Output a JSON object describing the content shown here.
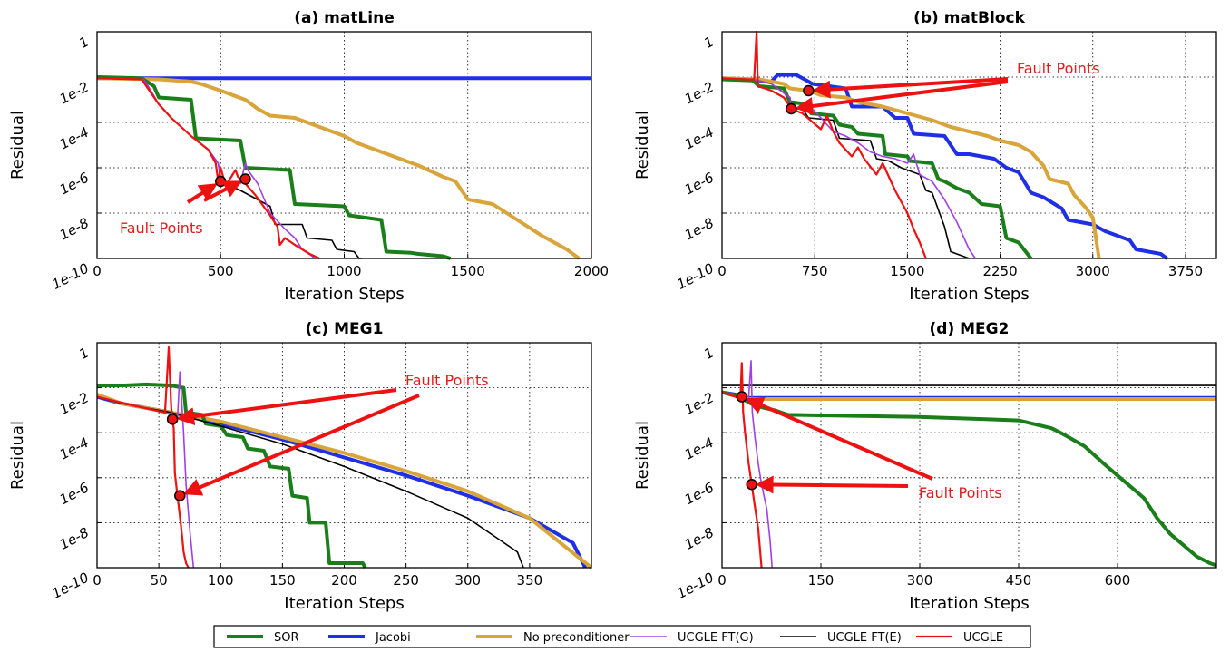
{
  "legend": [
    {
      "name": "SOR",
      "color": "#1a7f1a",
      "width": 4
    },
    {
      "name": "Jacobi",
      "color": "#1f2fe6",
      "width": 4
    },
    {
      "name": "No preconditioner",
      "color": "#d9a43a",
      "width": 4
    },
    {
      "name": "UCGLE FT(G)",
      "color": "#a23ee6",
      "width": 1.6
    },
    {
      "name": "UCGLE FT(E)",
      "color": "#000000",
      "width": 1.6
    },
    {
      "name": "UCGLE",
      "color": "#ee1111",
      "width": 2.2
    }
  ],
  "chart_data": [
    {
      "type": "line",
      "title": "(a) matLine",
      "xlabel": "Iteration Steps",
      "ylabel": "Residual",
      "xlim": [
        0,
        2000
      ],
      "xticks": [
        0,
        500,
        1000,
        1500,
        2000
      ],
      "ylim": [
        -10,
        0
      ],
      "yticks": [
        "1e-10",
        "1e-8",
        "1e-6",
        "1e-4",
        "1e-2",
        "1"
      ],
      "y_scale": "log10",
      "grid": true,
      "annotation": {
        "text": "Fault Points",
        "points": [
          [
            500,
            -6.6
          ],
          [
            600,
            -6.5
          ]
        ]
      },
      "series": [
        {
          "name": "SOR",
          "x": [
            0,
            180,
            230,
            250,
            380,
            400,
            580,
            600,
            780,
            800,
            1000,
            1020,
            1150,
            1170,
            1270,
            1300,
            1400,
            1430
          ],
          "y": [
            -2.0,
            -2.05,
            -2.4,
            -2.9,
            -3.0,
            -4.7,
            -4.8,
            -6.0,
            -6.1,
            -7.6,
            -7.7,
            -8.1,
            -8.3,
            -9.7,
            -9.75,
            -9.8,
            -9.9,
            -10.0
          ]
        },
        {
          "name": "Jacobi",
          "x": [
            0,
            2000
          ],
          "y": [
            -2.05,
            -2.05
          ]
        },
        {
          "name": "No preconditioner",
          "x": [
            0,
            250,
            380,
            420,
            500,
            600,
            650,
            700,
            800,
            900,
            950,
            1000,
            1050,
            1100,
            1200,
            1300,
            1400,
            1450,
            1500,
            1600,
            1700,
            1800,
            1900,
            1950
          ],
          "y": [
            -2.05,
            -2.1,
            -2.2,
            -2.3,
            -2.6,
            -3.0,
            -3.4,
            -3.7,
            -3.8,
            -4.2,
            -4.4,
            -4.6,
            -4.9,
            -5.1,
            -5.5,
            -5.9,
            -6.4,
            -6.6,
            -7.4,
            -7.6,
            -8.3,
            -9.0,
            -9.6,
            -10.0
          ]
        },
        {
          "name": "UCGLE FT(G)",
          "x": [
            0,
            190,
            250,
            300,
            380,
            450,
            490,
            500,
            520,
            580,
            600,
            610,
            650,
            700,
            760,
            800,
            830,
            870,
            880
          ],
          "y": [
            -2.05,
            -2.1,
            -3.2,
            -3.8,
            -4.6,
            -5.2,
            -5.8,
            -6.5,
            -6.7,
            -6.7,
            -5.8,
            -6.1,
            -6.7,
            -8.0,
            -8.7,
            -9.1,
            -9.6,
            -9.9,
            -10.0
          ]
        },
        {
          "name": "UCGLE FT(E)",
          "x": [
            0,
            190,
            250,
            300,
            380,
            450,
            490,
            500,
            520,
            580,
            700,
            720,
            830,
            850,
            950,
            970,
            1040,
            1060,
            1070
          ],
          "y": [
            -2.05,
            -2.1,
            -3.2,
            -3.8,
            -4.6,
            -5.2,
            -5.8,
            -6.5,
            -6.7,
            -7.0,
            -7.7,
            -8.5,
            -8.5,
            -9.1,
            -9.2,
            -9.6,
            -9.7,
            -10.0,
            -10.0
          ]
        },
        {
          "name": "UCGLE",
          "x": [
            0,
            180,
            250,
            300,
            380,
            450,
            480,
            490,
            500,
            520,
            560,
            570,
            600,
            640,
            700,
            730,
            740,
            760,
            800,
            860,
            900
          ],
          "y": [
            -2.05,
            -2.1,
            -3.2,
            -3.8,
            -4.6,
            -5.2,
            -5.8,
            -6.6,
            -6.0,
            -6.8,
            -6.1,
            -6.4,
            -6.7,
            -7.2,
            -8.1,
            -8.6,
            -9.4,
            -9.1,
            -9.4,
            -9.8,
            -10.0
          ]
        }
      ]
    },
    {
      "type": "line",
      "title": "(b) matBlock",
      "xlabel": "Iteration Steps",
      "ylabel": "Residual",
      "xlim": [
        0,
        4000
      ],
      "xticks": [
        0,
        750,
        1500,
        2250,
        3000,
        3750
      ],
      "ylim": [
        -10,
        0
      ],
      "yticks": [
        "1e-10",
        "1e-8",
        "1e-6",
        "1e-4",
        "1e-2",
        "1"
      ],
      "y_scale": "log10",
      "grid": true,
      "annotation": {
        "text": "Fault Points",
        "points": [
          [
            700,
            -2.6
          ],
          [
            560,
            -3.4
          ]
        ]
      },
      "series": [
        {
          "name": "SOR",
          "x": [
            0,
            250,
            300,
            500,
            550,
            700,
            720,
            900,
            950,
            1050,
            1100,
            1300,
            1320,
            1500,
            1520,
            1700,
            1750,
            1800,
            1900,
            2000,
            2100,
            2250,
            2300,
            2400,
            2500
          ],
          "y": [
            -2.1,
            -2.15,
            -2.4,
            -2.5,
            -3.1,
            -3.2,
            -3.6,
            -3.7,
            -4.1,
            -4.2,
            -4.5,
            -4.6,
            -5.4,
            -5.5,
            -5.7,
            -5.8,
            -6.5,
            -6.6,
            -6.9,
            -7.1,
            -7.6,
            -7.7,
            -9.1,
            -9.3,
            -10.0
          ]
        },
        {
          "name": "Jacobi",
          "x": [
            0,
            200,
            400,
            450,
            600,
            700,
            730,
            1000,
            1050,
            1300,
            1400,
            1500,
            1550,
            1800,
            1900,
            2000,
            2200,
            2300,
            2400,
            2500,
            2600,
            2750,
            2800,
            3000,
            3100,
            3300,
            3350,
            3450,
            3550,
            3600
          ],
          "y": [
            -2.05,
            -2.1,
            -2.2,
            -1.9,
            -1.9,
            -2.2,
            -2.3,
            -2.5,
            -3.3,
            -3.3,
            -3.8,
            -3.8,
            -4.5,
            -4.6,
            -5.4,
            -5.4,
            -5.6,
            -6.0,
            -6.2,
            -7.1,
            -7.3,
            -7.8,
            -8.3,
            -8.5,
            -8.8,
            -9.2,
            -9.6,
            -9.7,
            -9.8,
            -10.0
          ]
        },
        {
          "name": "No preconditioner",
          "x": [
            0,
            300,
            500,
            550,
            700,
            800,
            1000,
            1100,
            1300,
            1500,
            1700,
            1850,
            2000,
            2150,
            2250,
            2400,
            2500,
            2600,
            2650,
            2800,
            2850,
            2950,
            3000,
            3050
          ],
          "y": [
            -2.05,
            -2.1,
            -2.3,
            -2.5,
            -2.6,
            -2.8,
            -2.9,
            -3.1,
            -3.3,
            -3.6,
            -3.9,
            -4.2,
            -4.4,
            -4.6,
            -4.8,
            -5.0,
            -5.3,
            -5.9,
            -6.5,
            -6.7,
            -7.2,
            -7.8,
            -8.2,
            -10.0
          ]
        },
        {
          "name": "UCGLE FT(G)",
          "x": [
            0,
            250,
            400,
            550,
            560,
            600,
            700,
            750,
            900,
            1000,
            1100,
            1200,
            1300,
            1400,
            1500,
            1550,
            1600,
            1700,
            1800,
            1900,
            2000,
            2050
          ],
          "y": [
            -2.05,
            -2.1,
            -2.3,
            -2.9,
            -3.4,
            -3.4,
            -3.3,
            -3.5,
            -4.4,
            -4.6,
            -4.9,
            -5.3,
            -5.5,
            -5.6,
            -5.8,
            -5.4,
            -6.3,
            -6.6,
            -7.4,
            -8.4,
            -9.6,
            -10.0
          ]
        },
        {
          "name": "UCGLE FT(E)",
          "x": [
            0,
            250,
            400,
            550,
            560,
            650,
            700,
            900,
            950,
            1200,
            1250,
            1350,
            1450,
            1500,
            1600,
            1650,
            1700,
            1800,
            1850,
            1950,
            2000
          ],
          "y": [
            -2.05,
            -2.1,
            -2.3,
            -2.9,
            -3.4,
            -3.4,
            -3.8,
            -3.9,
            -4.7,
            -4.8,
            -5.6,
            -5.7,
            -6.0,
            -6.1,
            -6.3,
            -7.0,
            -7.1,
            -8.6,
            -9.7,
            -9.9,
            -10.0
          ]
        },
        {
          "name": "UCGLE",
          "x": [
            0,
            200,
            260,
            280,
            290,
            400,
            500,
            550,
            560,
            650,
            800,
            850,
            900,
            950,
            1050,
            1100,
            1150,
            1250,
            1300,
            1400,
            1450,
            1500,
            1550,
            1600,
            1650
          ],
          "y": [
            -2.05,
            -2.1,
            -2.1,
            0.0,
            -2.4,
            -2.6,
            -2.9,
            -3.3,
            -3.4,
            -3.6,
            -4.3,
            -3.7,
            -4.4,
            -4.9,
            -5.5,
            -5.1,
            -5.6,
            -6.3,
            -5.8,
            -7.0,
            -7.5,
            -8.0,
            -8.7,
            -9.3,
            -10.0
          ]
        }
      ]
    },
    {
      "type": "line",
      "title": "(c) MEG1",
      "xlabel": "Iteration Steps",
      "ylabel": "Residual",
      "xlim": [
        0,
        400
      ],
      "xticks": [
        0,
        50,
        100,
        150,
        200,
        250,
        300,
        350
      ],
      "ylim": [
        -10,
        0
      ],
      "yticks": [
        "1e-10",
        "1e-8",
        "1e-6",
        "1e-4",
        "1e-2",
        "1"
      ],
      "y_scale": "log10",
      "grid": true,
      "annotation": {
        "text": "Fault Points",
        "points": [
          [
            61,
            -3.4
          ],
          [
            67,
            -6.8
          ]
        ]
      },
      "series": [
        {
          "name": "SOR",
          "x": [
            0,
            20,
            40,
            60,
            70,
            72,
            85,
            88,
            100,
            105,
            118,
            122,
            135,
            140,
            155,
            158,
            170,
            172,
            185,
            188,
            198,
            200,
            215,
            217
          ],
          "y": [
            -1.9,
            -1.9,
            -1.85,
            -1.9,
            -2.0,
            -3.1,
            -3.2,
            -3.6,
            -3.7,
            -4.1,
            -4.2,
            -4.7,
            -4.8,
            -5.5,
            -5.6,
            -6.8,
            -6.9,
            -8.0,
            -8.0,
            -9.8,
            -9.8,
            -9.8,
            -9.8,
            -10.0
          ]
        },
        {
          "name": "Jacobi",
          "x": [
            0,
            20,
            40,
            60,
            100,
            150,
            200,
            250,
            300,
            350,
            385,
            395
          ],
          "y": [
            -2.4,
            -2.7,
            -2.9,
            -3.1,
            -3.6,
            -4.3,
            -5.1,
            -5.9,
            -6.8,
            -7.8,
            -8.9,
            -10.0
          ]
        },
        {
          "name": "No preconditioner",
          "x": [
            0,
            20,
            40,
            60,
            100,
            150,
            200,
            250,
            300,
            350,
            400
          ],
          "y": [
            -2.3,
            -2.7,
            -2.9,
            -3.1,
            -3.5,
            -4.2,
            -4.9,
            -5.7,
            -6.6,
            -7.8,
            -10.0
          ]
        },
        {
          "name": "UCGLE FT(G)",
          "x": [
            0,
            40,
            60,
            65,
            67,
            70,
            72,
            75,
            78
          ],
          "y": [
            -2.4,
            -2.9,
            -3.2,
            -3.4,
            -1.3,
            -4.0,
            -6.3,
            -8.3,
            -10.0
          ]
        },
        {
          "name": "UCGLE FT(E)",
          "x": [
            0,
            20,
            40,
            60,
            100,
            150,
            200,
            250,
            300,
            340,
            345
          ],
          "y": [
            -2.4,
            -2.7,
            -2.9,
            -3.1,
            -3.7,
            -4.5,
            -5.5,
            -6.6,
            -7.8,
            -9.3,
            -10.0
          ]
        },
        {
          "name": "UCGLE",
          "x": [
            0,
            30,
            55,
            58,
            60,
            61,
            62,
            63,
            65,
            67,
            69,
            70,
            72,
            74
          ],
          "y": [
            -2.4,
            -2.8,
            -3.1,
            -0.2,
            -2.9,
            -3.4,
            -3.8,
            -5.8,
            -6.8,
            -7.7,
            -8.7,
            -9.3,
            -9.8,
            -10.0
          ]
        }
      ]
    },
    {
      "type": "line",
      "title": "(d) MEG2",
      "xlabel": "Iteration Steps",
      "ylabel": "Residual",
      "xlim": [
        0,
        750
      ],
      "xticks": [
        0,
        150,
        300,
        450,
        600
      ],
      "ylim": [
        -10,
        0
      ],
      "yticks": [
        "1e-10",
        "1e-8",
        "1e-6",
        "1e-4",
        "1e-2",
        "1"
      ],
      "y_scale": "log10",
      "grid": true,
      "annotation": {
        "text": "Fault Points",
        "points": [
          [
            30,
            -2.4
          ],
          [
            45,
            -6.3
          ]
        ]
      },
      "series": [
        {
          "name": "SOR",
          "x": [
            0,
            25,
            50,
            80,
            100,
            200,
            300,
            400,
            450,
            500,
            520,
            550,
            580,
            600,
            620,
            640,
            660,
            680,
            700,
            720,
            740,
            750
          ],
          "y": [
            -2.2,
            -2.4,
            -2.8,
            -3.0,
            -3.2,
            -3.25,
            -3.3,
            -3.4,
            -3.45,
            -3.8,
            -4.1,
            -4.6,
            -5.4,
            -5.9,
            -6.4,
            -6.9,
            -7.8,
            -8.5,
            -9.0,
            -9.5,
            -9.8,
            -9.9
          ]
        },
        {
          "name": "Jacobi",
          "x": [
            0,
            20,
            40,
            750
          ],
          "y": [
            -2.2,
            -2.3,
            -2.45,
            -2.45
          ]
        },
        {
          "name": "No preconditioner",
          "x": [
            0,
            20,
            40,
            750
          ],
          "y": [
            -2.2,
            -2.35,
            -2.5,
            -2.5
          ]
        },
        {
          "name": "UCGLE FT(G)",
          "x": [
            0,
            20,
            40,
            44,
            46,
            50,
            55,
            60,
            68,
            73,
            76
          ],
          "y": [
            -2.2,
            -2.4,
            -2.6,
            -0.8,
            -3.1,
            -4.2,
            -5.4,
            -6.3,
            -7.4,
            -8.8,
            -10.0
          ]
        },
        {
          "name": "UCGLE FT(E)",
          "x": [
            0,
            750
          ],
          "y": [
            -1.9,
            -1.9
          ]
        },
        {
          "name": "UCGLE",
          "x": [
            0,
            20,
            28,
            30,
            32,
            35,
            40,
            45,
            50,
            55,
            58,
            60
          ],
          "y": [
            -2.2,
            -2.4,
            -2.5,
            -0.9,
            -3.1,
            -4.0,
            -5.3,
            -6.3,
            -7.3,
            -8.3,
            -9.3,
            -10.0
          ]
        }
      ]
    }
  ]
}
